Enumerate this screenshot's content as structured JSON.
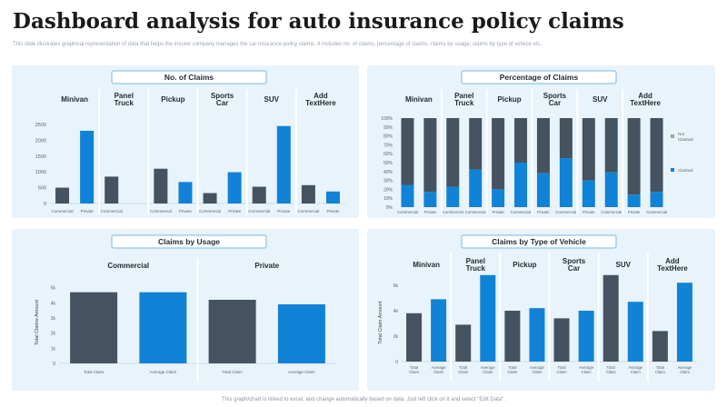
{
  "page": {
    "title": "Dashboard analysis for auto insurance policy claims",
    "subtitle": "This slide illustrates graphical representation of data that helps the insurer company manages the car insurance policy claims. It includes no. of claims, percentage of claims, claims by usage, claims by type of vehicle etc.",
    "footer": "This graph/chart is linked to excel, and change automatically based on data. Just left click on it and select \"Edit Data\"."
  },
  "colors": {
    "dark": "#44535f",
    "blue": "#1083d6",
    "panel": "#e8f3fb",
    "title_border": "#7fb6db"
  },
  "chart_data": [
    {
      "id": "claims-count",
      "type": "bar",
      "title": "No. of Claims",
      "groups": [
        "Minivan",
        "Panel Truck",
        "Pickup",
        "Sports Car",
        "SUV",
        "Add Text Here"
      ],
      "categories": [
        "Commercial",
        "Private",
        "Commercial",
        "",
        "Commercial",
        "Private",
        "Commercial",
        "Private",
        "Commercial",
        "Private",
        "Commercial",
        "Private"
      ],
      "values": [
        500,
        2300,
        850,
        0,
        1100,
        680,
        330,
        990,
        530,
        2450,
        580,
        380
      ],
      "bar_colors": [
        "dark",
        "blue",
        "dark",
        "dark",
        "dark",
        "blue",
        "dark",
        "blue",
        "dark",
        "blue",
        "dark",
        "blue"
      ],
      "yticks": [
        "0",
        "500",
        "1000",
        "1500",
        "2000",
        "2500"
      ],
      "ylim": [
        0,
        2500
      ]
    },
    {
      "id": "claims-percentage",
      "type": "bar",
      "stacked": true,
      "title": "Percentage of Claims",
      "groups": [
        "Minivan",
        "Panel Truck",
        "Pickup",
        "Sports Car",
        "SUV",
        "Add Text Here"
      ],
      "categories": [
        "Commercial",
        "Private",
        "Commercial",
        "Commercial",
        "Private",
        "Commercial",
        "Private",
        "Commercial",
        "Private",
        "Commercial",
        "Private",
        "Commercial"
      ],
      "series": [
        {
          "name": "Claimed",
          "values": [
            25,
            17,
            23,
            42,
            20,
            50,
            38,
            55,
            30,
            39,
            14,
            17
          ]
        },
        {
          "name": "Not Claimed",
          "values": [
            75,
            83,
            77,
            58,
            80,
            50,
            62,
            45,
            70,
            61,
            86,
            83
          ]
        }
      ],
      "yticks": [
        "0%",
        "10%",
        "20%",
        "30%",
        "40%",
        "50%",
        "60%",
        "70%",
        "80%",
        "90%",
        "100%"
      ],
      "ylim": [
        0,
        100
      ],
      "legend": "right"
    },
    {
      "id": "claims-usage",
      "type": "bar",
      "title": "Claims by Usage",
      "groups": [
        "Commercial",
        "Private"
      ],
      "categories": [
        "Total Claim",
        "Average Claim",
        "Total Claim",
        "Average Claim"
      ],
      "values": [
        4.7,
        4.7,
        4.2,
        3.9
      ],
      "bar_colors": [
        "dark",
        "blue",
        "dark",
        "blue"
      ],
      "yticks": [
        "0",
        "1k",
        "2k",
        "3k",
        "4k",
        "5k"
      ],
      "ylim": [
        0,
        6
      ],
      "ylabel": "Total Claims Amount"
    },
    {
      "id": "claims-vehicle-type",
      "type": "bar",
      "title": "Claims by Type of Vehicle",
      "groups": [
        "Minivan",
        "Panel Truck",
        "Pickup",
        "Sports Car",
        "SUV",
        "Add Text Here"
      ],
      "categories": [
        "Total Claim",
        "Average Claim",
        "Total Claim",
        "Average Claim",
        "Total Claim",
        "Average Claim",
        "Total Claim",
        "Average Claim",
        "Total Claim",
        "Average Claim",
        "Total Claim",
        "Average Claim"
      ],
      "values": [
        3.8,
        4.9,
        2.9,
        6.8,
        4.0,
        4.2,
        3.4,
        4.0,
        6.8,
        4.7,
        2.4,
        6.2
      ],
      "bar_colors": [
        "dark",
        "blue",
        "dark",
        "blue",
        "dark",
        "blue",
        "dark",
        "blue",
        "dark",
        "blue",
        "dark",
        "blue"
      ],
      "yticks": [
        "0",
        "2k",
        "4k",
        "6k"
      ],
      "ylim": [
        0,
        8
      ],
      "ylabel": "Total Claim Amount"
    }
  ]
}
